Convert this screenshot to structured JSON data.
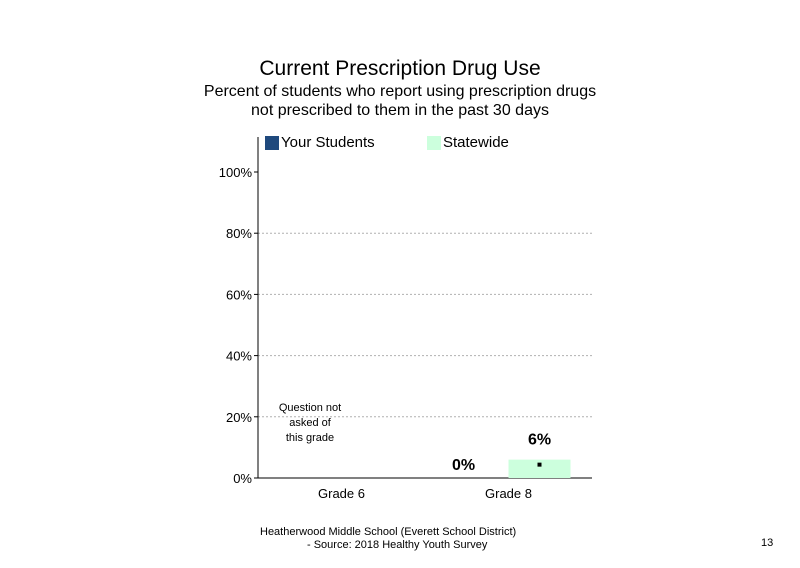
{
  "chart_data": {
    "type": "bar",
    "title": "Current Prescription Drug Use",
    "subtitle": [
      "Percent of students who report using prescription drugs",
      "not prescribed to them in the past 30 days"
    ],
    "categories": [
      "Grade 6",
      "Grade 8"
    ],
    "series": [
      {
        "name": "Your Students",
        "color": "#1f497d",
        "values": [
          null,
          0
        ],
        "labels": [
          "",
          "0%"
        ]
      },
      {
        "name": "Statewide",
        "color": "#ccffdd",
        "values": [
          null,
          6
        ],
        "labels": [
          "",
          "6%"
        ]
      }
    ],
    "y_ticks": [
      "0%",
      "20%",
      "40%",
      "60%",
      "80%",
      "100%"
    ],
    "ylim": [
      0,
      110
    ],
    "grid": true,
    "legend_position": "top",
    "annotations": [
      {
        "category": "Grade 6",
        "text": [
          "Question not",
          "asked of",
          "this grade"
        ]
      }
    ]
  },
  "footer": {
    "line1": "Heatherwood Middle School (Everett School District)",
    "line2": "- Source: 2018 Healthy Youth Survey"
  },
  "page_number": "13"
}
